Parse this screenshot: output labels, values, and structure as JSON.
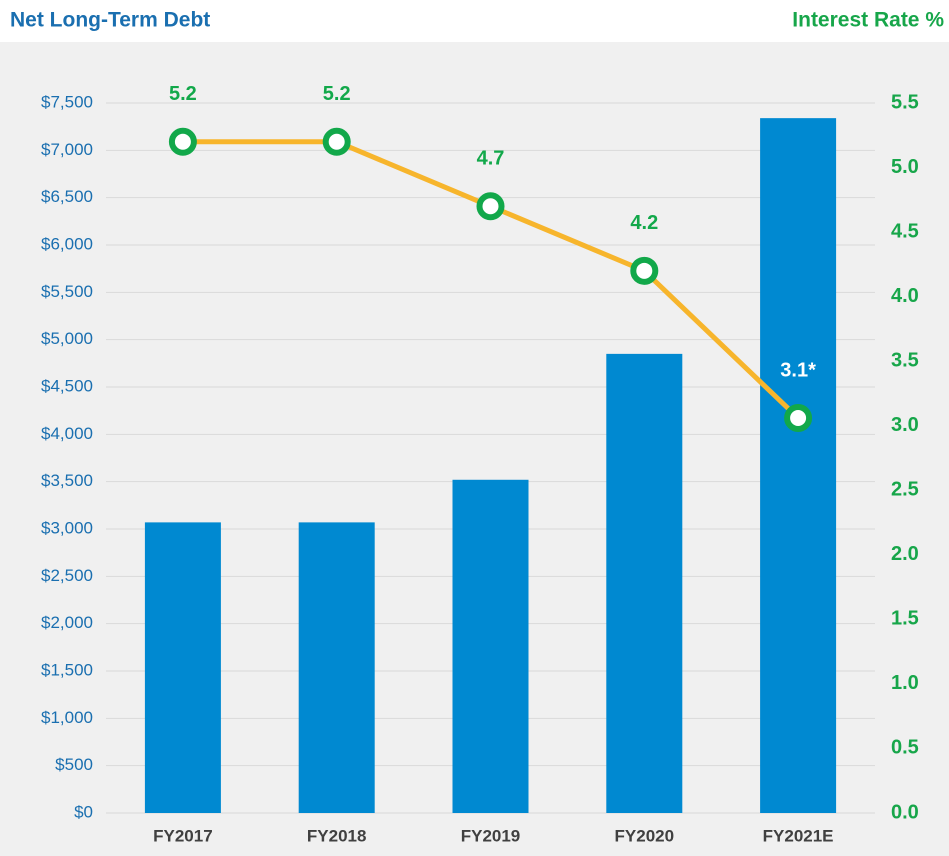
{
  "chart_data": {
    "type": "combo",
    "y_label": "Net Long-Term Debt",
    "y2_label": "Interest Rate %",
    "categories": [
      "FY2017",
      "FY2018",
      "FY2019",
      "FY2020",
      "FY2021E"
    ],
    "series": [
      {
        "type": "bar",
        "axis": "y",
        "color": "#0089d1",
        "values": [
          3070,
          3070,
          3520,
          4850,
          7340
        ]
      },
      {
        "type": "line",
        "axis": "y2",
        "color": "#f7b52c",
        "marker_color": "#12a84a",
        "values": [
          5.2,
          5.2,
          4.7,
          4.2,
          3.06
        ],
        "value_labels": [
          "5.2",
          "5.2",
          "4.7",
          "4.2",
          "3.1*"
        ]
      }
    ],
    "ylim": [
      0,
      7500
    ],
    "yticks": [
      {
        "value": 0,
        "label": "$0"
      },
      {
        "value": 500,
        "label": "$500"
      },
      {
        "value": 1000,
        "label": "$1,000"
      },
      {
        "value": 1500,
        "label": "$1,500"
      },
      {
        "value": 2000,
        "label": "$2,000"
      },
      {
        "value": 2500,
        "label": "$2,500"
      },
      {
        "value": 3000,
        "label": "$3,000"
      },
      {
        "value": 3500,
        "label": "$3,500"
      },
      {
        "value": 4000,
        "label": "$4,000"
      },
      {
        "value": 4500,
        "label": "$4,500"
      },
      {
        "value": 5000,
        "label": "$5,000"
      },
      {
        "value": 5500,
        "label": "$5,500"
      },
      {
        "value": 6000,
        "label": "$6,000"
      },
      {
        "value": 6500,
        "label": "$6,500"
      },
      {
        "value": 7000,
        "label": "$7,000"
      },
      {
        "value": 7500,
        "label": "$7,500"
      }
    ],
    "y2lim": [
      0,
      5.5
    ],
    "y2ticks": [
      {
        "value": 0,
        "label": "0.0"
      },
      0.5,
      {
        "value": 1,
        "label": "1.0"
      },
      1.5,
      {
        "value": 2,
        "label": "2.0"
      },
      2.5,
      {
        "value": 3,
        "label": "3.0"
      },
      3.5,
      {
        "value": 4,
        "label": "4.0"
      },
      4.5,
      {
        "value": 5,
        "label": "5.0"
      },
      5.5
    ],
    "grid": true
  }
}
